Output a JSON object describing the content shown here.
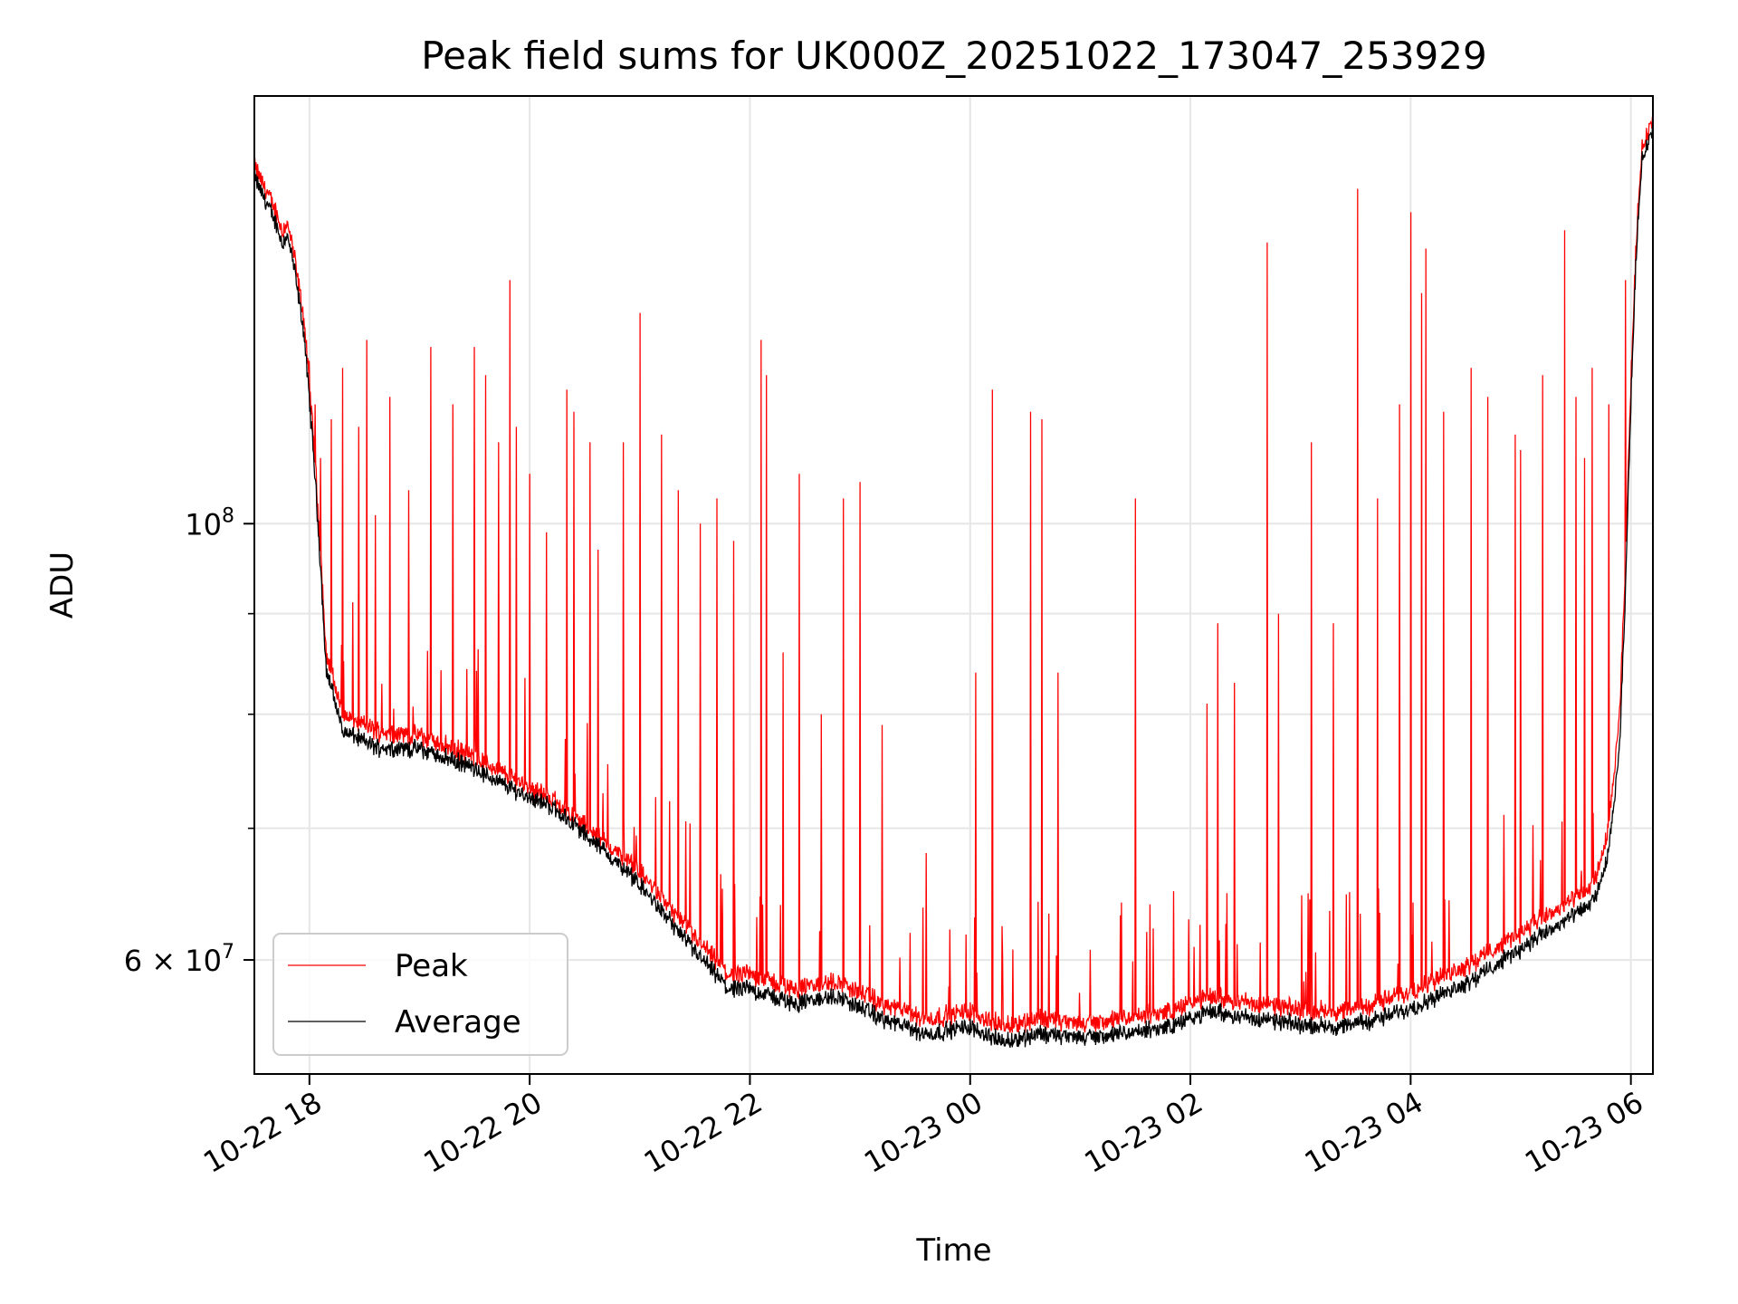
{
  "chart_data": {
    "type": "line",
    "title": "Peak field sums for UK000Z_20251022_173047_253929",
    "xlabel": "Time",
    "ylabel": "ADU",
    "yscale": "log",
    "xlim_hours": [
      17.5,
      30.2
    ],
    "ylim": [
      52500000,
      165000000
    ],
    "grid": true,
    "legend_position": "lower left",
    "x_ticks": [
      {
        "hours": 18,
        "label": "10-22 18"
      },
      {
        "hours": 20,
        "label": "10-22 20"
      },
      {
        "hours": 22,
        "label": "10-22 22"
      },
      {
        "hours": 24,
        "label": "10-23 00"
      },
      {
        "hours": 26,
        "label": "10-23 02"
      },
      {
        "hours": 28,
        "label": "10-23 04"
      },
      {
        "hours": 30,
        "label": "10-23 06"
      }
    ],
    "y_major_ticks": [
      {
        "value": 100000000,
        "base": "10",
        "exp": "8",
        "mantissa": ""
      },
      {
        "value": 60000000,
        "base": "10",
        "exp": "7",
        "mantissa": "6 × "
      }
    ],
    "y_minor_ticks": [
      70000000,
      80000000,
      90000000
    ],
    "series": [
      {
        "name": "Peak",
        "color": "#ff0000",
        "baseline": {
          "x": [
            17.5,
            17.6,
            17.7,
            17.75,
            17.8,
            17.85,
            17.95,
            18.05,
            18.15,
            18.3,
            18.6,
            19.0,
            19.4,
            19.8,
            20.2,
            20.6,
            21.0,
            21.4,
            21.8,
            22.0,
            22.4,
            22.8,
            23.2,
            23.6,
            24.0,
            24.3,
            24.6,
            25.0,
            25.4,
            25.8,
            26.2,
            26.6,
            27.0,
            27.4,
            27.8,
            28.2,
            28.6,
            29.0,
            29.4,
            29.6,
            29.7,
            29.8,
            29.9,
            29.95,
            30.05,
            30.1,
            30.2
          ],
          "y": [
            152000000,
            148000000,
            144000000,
            141000000,
            142000000,
            138000000,
            127000000,
            108000000,
            86000000,
            80000000,
            78500000,
            78000000,
            76500000,
            74500000,
            72500000,
            69500000,
            66500000,
            62500000,
            59000000,
            59000000,
            58000000,
            58500000,
            57000000,
            56000000,
            56500000,
            55500000,
            56000000,
            55700000,
            56000000,
            56500000,
            57500000,
            57000000,
            56600000,
            56500000,
            57300000,
            58500000,
            60000000,
            62000000,
            64000000,
            65000000,
            66500000,
            70000000,
            80000000,
            95000000,
            140000000,
            155000000,
            161000000
          ]
        },
        "spikes": [
          {
            "x": 18.0,
            "y": 121000000
          },
          {
            "x": 18.05,
            "y": 115000000
          },
          {
            "x": 18.1,
            "y": 108000000
          },
          {
            "x": 18.2,
            "y": 113000000
          },
          {
            "x": 18.3,
            "y": 120000000
          },
          {
            "x": 18.45,
            "y": 112000000
          },
          {
            "x": 18.52,
            "y": 124000000
          },
          {
            "x": 18.6,
            "y": 101000000
          },
          {
            "x": 18.73,
            "y": 116000000
          },
          {
            "x": 18.9,
            "y": 104000000
          },
          {
            "x": 19.1,
            "y": 123000000
          },
          {
            "x": 19.3,
            "y": 115000000
          },
          {
            "x": 19.5,
            "y": 123000000
          },
          {
            "x": 19.6,
            "y": 119000000
          },
          {
            "x": 19.72,
            "y": 110000000
          },
          {
            "x": 19.82,
            "y": 133000000
          },
          {
            "x": 19.88,
            "y": 112000000
          },
          {
            "x": 20.0,
            "y": 106000000
          },
          {
            "x": 20.15,
            "y": 99000000
          },
          {
            "x": 20.34,
            "y": 117000000
          },
          {
            "x": 20.4,
            "y": 114000000
          },
          {
            "x": 20.55,
            "y": 110000000
          },
          {
            "x": 20.62,
            "y": 97000000
          },
          {
            "x": 20.85,
            "y": 110000000
          },
          {
            "x": 21.0,
            "y": 128000000
          },
          {
            "x": 21.2,
            "y": 111000000
          },
          {
            "x": 21.35,
            "y": 104000000
          },
          {
            "x": 21.55,
            "y": 100000000
          },
          {
            "x": 21.7,
            "y": 103000000
          },
          {
            "x": 21.85,
            "y": 98000000
          },
          {
            "x": 22.1,
            "y": 124000000
          },
          {
            "x": 22.15,
            "y": 119000000
          },
          {
            "x": 22.3,
            "y": 86000000
          },
          {
            "x": 22.45,
            "y": 106000000
          },
          {
            "x": 22.65,
            "y": 80000000
          },
          {
            "x": 22.85,
            "y": 103000000
          },
          {
            "x": 23.0,
            "y": 105000000
          },
          {
            "x": 23.2,
            "y": 79000000
          },
          {
            "x": 23.6,
            "y": 68000000
          },
          {
            "x": 24.05,
            "y": 84000000
          },
          {
            "x": 24.2,
            "y": 117000000
          },
          {
            "x": 24.55,
            "y": 114000000
          },
          {
            "x": 24.65,
            "y": 113000000
          },
          {
            "x": 24.8,
            "y": 84000000
          },
          {
            "x": 25.5,
            "y": 103000000
          },
          {
            "x": 26.15,
            "y": 81000000
          },
          {
            "x": 26.25,
            "y": 89000000
          },
          {
            "x": 26.4,
            "y": 83000000
          },
          {
            "x": 26.7,
            "y": 139000000
          },
          {
            "x": 26.8,
            "y": 90000000
          },
          {
            "x": 27.1,
            "y": 110000000
          },
          {
            "x": 27.3,
            "y": 89000000
          },
          {
            "x": 27.52,
            "y": 148000000
          },
          {
            "x": 27.7,
            "y": 103000000
          },
          {
            "x": 27.9,
            "y": 115000000
          },
          {
            "x": 28.0,
            "y": 144000000
          },
          {
            "x": 28.1,
            "y": 131000000
          },
          {
            "x": 28.14,
            "y": 138000000
          },
          {
            "x": 28.3,
            "y": 114000000
          },
          {
            "x": 28.55,
            "y": 120000000
          },
          {
            "x": 28.7,
            "y": 116000000
          },
          {
            "x": 28.95,
            "y": 111000000
          },
          {
            "x": 29.0,
            "y": 109000000
          },
          {
            "x": 29.2,
            "y": 119000000
          },
          {
            "x": 29.4,
            "y": 141000000
          },
          {
            "x": 29.5,
            "y": 116000000
          },
          {
            "x": 29.58,
            "y": 108000000
          },
          {
            "x": 29.65,
            "y": 120000000
          },
          {
            "x": 29.8,
            "y": 115000000
          },
          {
            "x": 29.95,
            "y": 133000000
          }
        ]
      },
      {
        "name": "Average",
        "color": "#000000",
        "baseline": {
          "x": [
            17.5,
            17.6,
            17.7,
            17.75,
            17.8,
            17.85,
            17.95,
            18.05,
            18.15,
            18.3,
            18.6,
            19.0,
            19.4,
            19.8,
            20.2,
            20.6,
            21.0,
            21.4,
            21.8,
            22.0,
            22.4,
            22.8,
            23.2,
            23.6,
            24.0,
            24.3,
            24.6,
            25.0,
            25.4,
            25.8,
            26.2,
            26.6,
            27.0,
            27.4,
            27.8,
            28.2,
            28.6,
            29.0,
            29.4,
            29.6,
            29.7,
            29.8,
            29.9,
            29.95,
            30.05,
            30.1,
            30.2
          ],
          "y": [
            150000000,
            146000000,
            142000000,
            139000000,
            140000000,
            136000000,
            125000000,
            106000000,
            84500000,
            78500000,
            77000000,
            76800000,
            75500000,
            73500000,
            71800000,
            68800000,
            65500000,
            61500000,
            58000000,
            58000000,
            57000000,
            57500000,
            56000000,
            55000000,
            55500000,
            54500000,
            55000000,
            54800000,
            55000000,
            55500000,
            56500000,
            56000000,
            55600000,
            55500000,
            56200000,
            57300000,
            58800000,
            60800000,
            62800000,
            63800000,
            65000000,
            68000000,
            77000000,
            92000000,
            138000000,
            153000000,
            159000000
          ]
        }
      }
    ]
  }
}
